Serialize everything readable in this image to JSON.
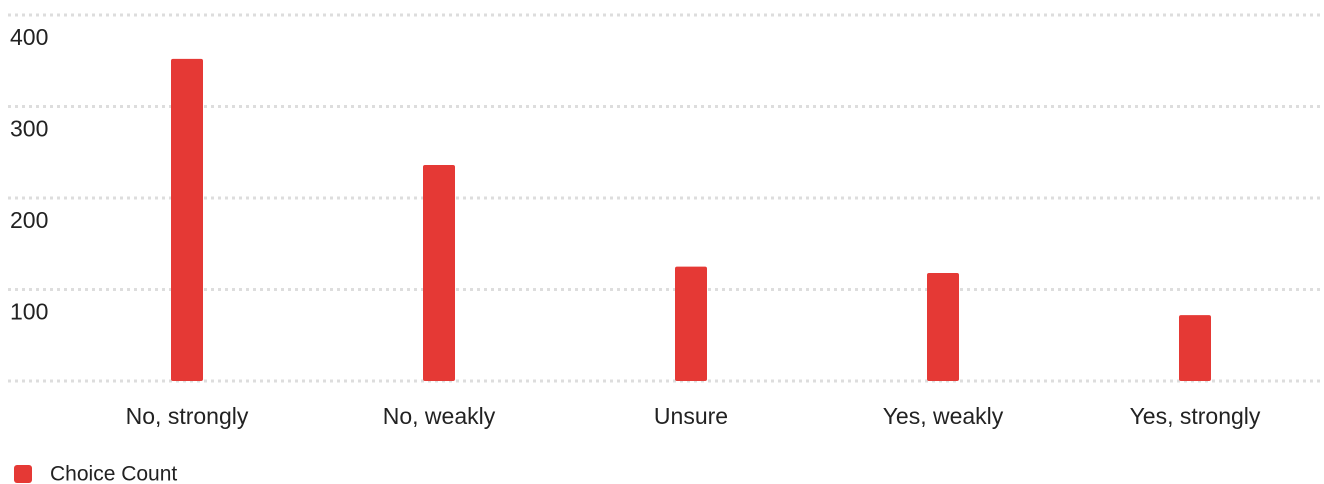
{
  "chart_data": {
    "type": "bar",
    "categories": [
      "No, strongly",
      "No, weakly",
      "Unsure",
      "Yes, weakly",
      "Yes, strongly"
    ],
    "series": [
      {
        "name": "Choice Count",
        "color": "#e53935",
        "values": [
          352,
          236,
          125,
          118,
          72
        ]
      }
    ],
    "ylim": [
      0,
      400
    ],
    "yticks": [
      100,
      200,
      300,
      400
    ],
    "grid": true
  }
}
